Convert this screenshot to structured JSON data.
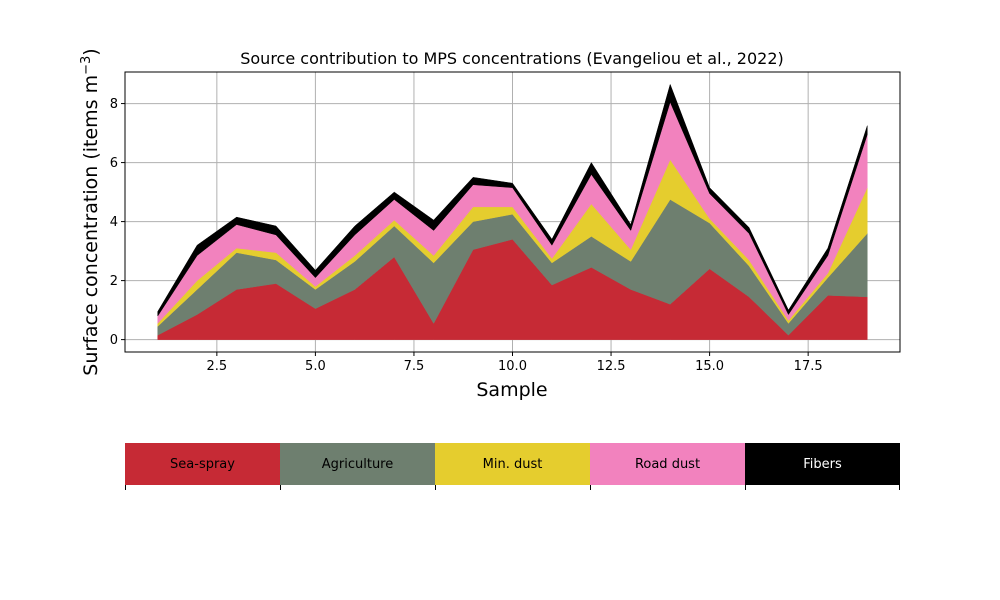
{
  "chart_data": {
    "type": "area",
    "title": "Source contribution to MPS concentrations (Evangeliou et al., 2022)",
    "xlabel": "Sample",
    "ylabel_main": "Surface concentration (items m",
    "ylabel_exp": "−3",
    "ylabel_close": ")",
    "xlim": [
      0.17,
      19.83
    ],
    "ylim": [
      -0.42,
      9.07
    ],
    "grid": true,
    "x_ticks": [
      2.5,
      5.0,
      7.5,
      10.0,
      12.5,
      15.0,
      17.5
    ],
    "x_tick_labels": [
      "2.5",
      "5.0",
      "7.5",
      "10.0",
      "12.5",
      "15.0",
      "17.5"
    ],
    "y_ticks": [
      0,
      2,
      4,
      6,
      8
    ],
    "y_tick_labels": [
      "0",
      "2",
      "4",
      "6",
      "8"
    ],
    "x": [
      1,
      2,
      3,
      4,
      5,
      6,
      7,
      8,
      9,
      10,
      11,
      12,
      13,
      14,
      15,
      16,
      17,
      18,
      19
    ],
    "series": [
      {
        "name": "Sea-spray",
        "color": "#c62a35",
        "values": [
          0.15,
          0.85,
          1.7,
          1.9,
          1.05,
          1.7,
          2.8,
          0.55,
          3.05,
          3.4,
          1.85,
          2.45,
          1.7,
          1.2,
          2.4,
          1.45,
          0.15,
          1.5,
          1.45
        ]
      },
      {
        "name": "Agriculture",
        "color": "#6e7f6f",
        "values": [
          0.3,
          0.85,
          1.25,
          0.8,
          0.65,
          0.95,
          1.05,
          2.05,
          0.95,
          0.85,
          0.75,
          1.05,
          0.95,
          3.55,
          1.55,
          1.05,
          0.4,
          0.6,
          2.15
        ]
      },
      {
        "name": "Min. dust",
        "color": "#e5cd2e",
        "values": [
          0.1,
          0.3,
          0.15,
          0.25,
          0.1,
          0.2,
          0.2,
          0.25,
          0.5,
          0.25,
          0.15,
          1.1,
          0.4,
          1.35,
          0.15,
          0.2,
          0.1,
          0.15,
          1.55
        ]
      },
      {
        "name": "Road dust",
        "color": "#f282be",
        "values": [
          0.25,
          0.85,
          0.8,
          0.6,
          0.3,
          0.7,
          0.7,
          0.85,
          0.75,
          0.65,
          0.45,
          1.0,
          0.65,
          1.95,
          0.85,
          0.9,
          0.2,
          0.6,
          1.8
        ]
      },
      {
        "name": "Fibers",
        "color": "#000000",
        "values": [
          0.15,
          0.35,
          0.25,
          0.3,
          0.25,
          0.3,
          0.25,
          0.35,
          0.25,
          0.15,
          0.2,
          0.4,
          0.2,
          0.6,
          0.2,
          0.2,
          0.15,
          0.25,
          0.3
        ]
      }
    ],
    "legend": {
      "placement": "bottom",
      "labels": [
        "Sea-spray",
        "Agriculture",
        "Min. dust",
        "Road dust",
        "Fibers"
      ],
      "colors": [
        "#c62a35",
        "#6e7f6f",
        "#e5cd2e",
        "#f282be",
        "#000000"
      ],
      "text_colors": [
        "#000000",
        "#000000",
        "#000000",
        "#000000",
        "#ffffff"
      ]
    }
  }
}
